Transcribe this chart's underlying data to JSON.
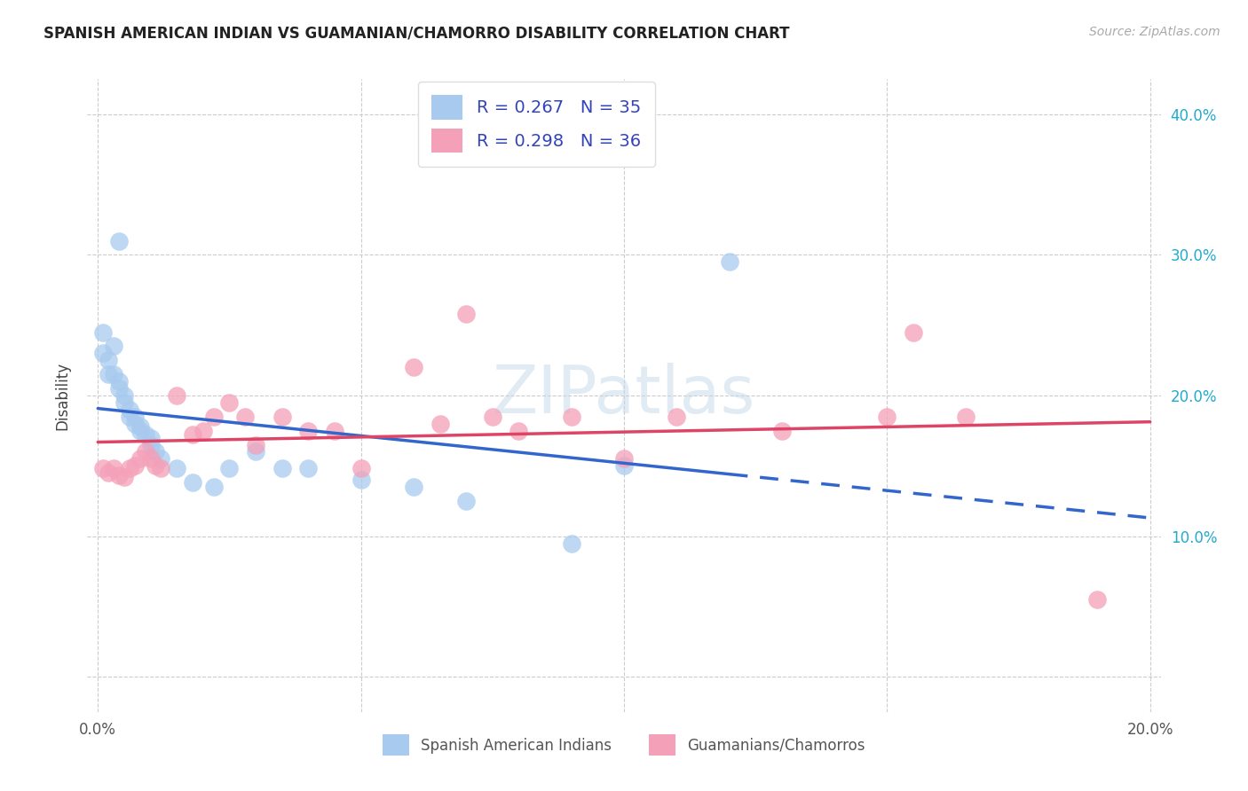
{
  "title": "SPANISH AMERICAN INDIAN VS GUAMANIAN/CHAMORRO DISABILITY CORRELATION CHART",
  "source": "Source: ZipAtlas.com",
  "ylabel": "Disability",
  "xlim": [
    -0.002,
    0.202
  ],
  "ylim": [
    -0.025,
    0.425
  ],
  "r_blue": 0.267,
  "n_blue": 35,
  "r_pink": 0.298,
  "n_pink": 36,
  "blue_fill": "#A8CAEE",
  "pink_fill": "#F4A0B8",
  "blue_line": "#3366CC",
  "pink_line": "#DD4466",
  "right_axis_color": "#22AACC",
  "text_color": "#3344BB",
  "legend_label_blue": "Spanish American Indians",
  "legend_label_pink": "Guamanians/Chamorros",
  "blue_x": [
    0.001,
    0.001,
    0.002,
    0.002,
    0.003,
    0.003,
    0.004,
    0.004,
    0.005,
    0.005,
    0.006,
    0.006,
    0.007,
    0.007,
    0.008,
    0.008,
    0.009,
    0.01,
    0.01,
    0.011,
    0.012,
    0.015,
    0.018,
    0.022,
    0.025,
    0.03,
    0.035,
    0.04,
    0.05,
    0.06,
    0.07,
    0.09,
    0.1,
    0.004,
    0.12
  ],
  "blue_y": [
    0.245,
    0.23,
    0.225,
    0.215,
    0.235,
    0.215,
    0.21,
    0.205,
    0.2,
    0.195,
    0.19,
    0.185,
    0.185,
    0.18,
    0.178,
    0.175,
    0.172,
    0.17,
    0.165,
    0.16,
    0.155,
    0.148,
    0.138,
    0.135,
    0.148,
    0.16,
    0.148,
    0.148,
    0.14,
    0.135,
    0.125,
    0.095,
    0.15,
    0.31,
    0.295
  ],
  "pink_x": [
    0.001,
    0.002,
    0.003,
    0.004,
    0.005,
    0.006,
    0.007,
    0.008,
    0.009,
    0.01,
    0.011,
    0.012,
    0.015,
    0.018,
    0.02,
    0.022,
    0.025,
    0.028,
    0.03,
    0.035,
    0.04,
    0.045,
    0.05,
    0.06,
    0.065,
    0.07,
    0.075,
    0.08,
    0.09,
    0.1,
    0.11,
    0.13,
    0.15,
    0.155,
    0.165,
    0.19
  ],
  "pink_y": [
    0.148,
    0.145,
    0.148,
    0.143,
    0.142,
    0.148,
    0.15,
    0.155,
    0.16,
    0.155,
    0.15,
    0.148,
    0.2,
    0.172,
    0.175,
    0.185,
    0.195,
    0.185,
    0.165,
    0.185,
    0.175,
    0.175,
    0.148,
    0.22,
    0.18,
    0.258,
    0.185,
    0.175,
    0.185,
    0.155,
    0.185,
    0.175,
    0.185,
    0.245,
    0.185,
    0.055
  ]
}
